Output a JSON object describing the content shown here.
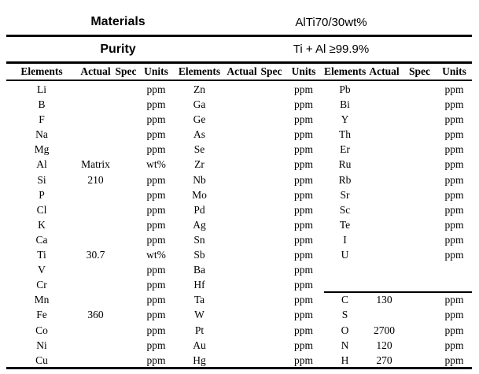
{
  "header": {
    "materials_label": "Materials",
    "materials_value": "AlTi70/30wt%",
    "purity_label": "Purity",
    "purity_value": "Ti + Al ≥99.9%"
  },
  "column_headers": [
    "Elements",
    "Actual",
    "Spec",
    "Units"
  ],
  "body": {
    "divider_before_row": 14,
    "rows": [
      [
        "Li",
        "",
        "",
        "ppm",
        "Zn",
        "",
        "",
        "ppm",
        "Pb",
        "",
        "",
        "ppm"
      ],
      [
        "B",
        "",
        "",
        "ppm",
        "Ga",
        "",
        "",
        "ppm",
        "Bi",
        "",
        "",
        "ppm"
      ],
      [
        "F",
        "",
        "",
        "ppm",
        "Ge",
        "",
        "",
        "ppm",
        "Y",
        "",
        "",
        "ppm"
      ],
      [
        "Na",
        "",
        "",
        "ppm",
        "As",
        "",
        "",
        "ppm",
        "Th",
        "",
        "",
        "ppm"
      ],
      [
        "Mg",
        "",
        "",
        "ppm",
        "Se",
        "",
        "",
        "ppm",
        "Er",
        "",
        "",
        "ppm"
      ],
      [
        "Al",
        "Matrix",
        "",
        "wt%",
        "Zr",
        "",
        "",
        "ppm",
        "Ru",
        "",
        "",
        "ppm"
      ],
      [
        "Si",
        "210",
        "",
        "ppm",
        "Nb",
        "",
        "",
        "ppm",
        "Rb",
        "",
        "",
        "ppm"
      ],
      [
        "P",
        "",
        "",
        "ppm",
        "Mo",
        "",
        "",
        "ppm",
        "Sr",
        "",
        "",
        "ppm"
      ],
      [
        "Cl",
        "",
        "",
        "ppm",
        "Pd",
        "",
        "",
        "ppm",
        "Sc",
        "",
        "",
        "ppm"
      ],
      [
        "K",
        "",
        "",
        "ppm",
        "Ag",
        "",
        "",
        "ppm",
        "Te",
        "",
        "",
        "ppm"
      ],
      [
        "Ca",
        "",
        "",
        "ppm",
        "Sn",
        "",
        "",
        "ppm",
        "I",
        "",
        "",
        "ppm"
      ],
      [
        "Ti",
        "30.7",
        "",
        "wt%",
        "Sb",
        "",
        "",
        "ppm",
        "U",
        "",
        "",
        "ppm"
      ],
      [
        "V",
        "",
        "",
        "ppm",
        "Ba",
        "",
        "",
        "ppm",
        "",
        "",
        "",
        ""
      ],
      [
        "Cr",
        "",
        "",
        "ppm",
        "Hf",
        "",
        "",
        "ppm",
        "",
        "",
        "",
        ""
      ],
      [
        "Mn",
        "",
        "",
        "ppm",
        "Ta",
        "",
        "",
        "ppm",
        "C",
        "130",
        "",
        "ppm"
      ],
      [
        "Fe",
        "360",
        "",
        "ppm",
        "W",
        "",
        "",
        "ppm",
        "S",
        "",
        "",
        "ppm"
      ],
      [
        "Co",
        "",
        "",
        "ppm",
        "Pt",
        "",
        "",
        "ppm",
        "O",
        "2700",
        "",
        "ppm"
      ],
      [
        "Ni",
        "",
        "",
        "ppm",
        "Au",
        "",
        "",
        "ppm",
        "N",
        "120",
        "",
        "ppm"
      ],
      [
        "Cu",
        "",
        "",
        "ppm",
        "Hg",
        "",
        "",
        "ppm",
        "H",
        "270",
        "",
        "ppm"
      ]
    ]
  }
}
